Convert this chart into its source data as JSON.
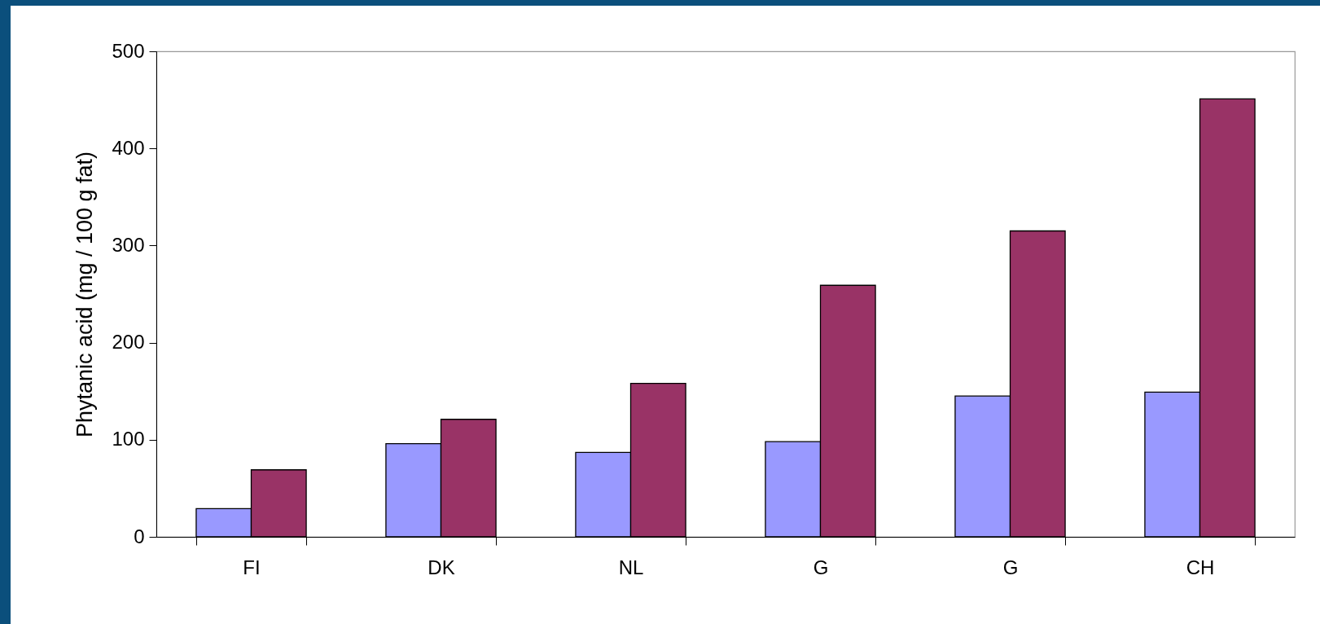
{
  "chart_data": {
    "type": "bar",
    "ylabel": "Phytanic acid (mg / 100 g fat)",
    "categories": [
      "FI",
      "DK",
      "NL",
      "G",
      "G",
      "CH"
    ],
    "series": [
      {
        "color": "#9999ff",
        "values": [
          29,
          96,
          87,
          98,
          145,
          149
        ]
      },
      {
        "color": "#993366",
        "values": [
          69,
          121,
          158,
          259,
          315,
          451
        ]
      }
    ],
    "ylim": [
      0,
      500
    ],
    "yticks": [
      0,
      100,
      200,
      300,
      400,
      500
    ],
    "grid": false,
    "legend": false
  }
}
